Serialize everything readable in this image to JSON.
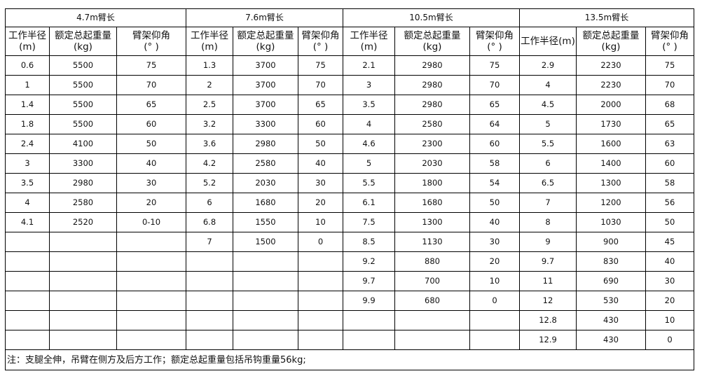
{
  "headers": {
    "radius": "工作半径",
    "radius_unit": "(m)",
    "radius_full": "工作半径(m)",
    "load": "额定总起重量",
    "load_unit": "(kg)",
    "angle": "臂架仰角",
    "angle_unit": "(° )"
  },
  "groups": [
    {
      "title": "4.7m臂长",
      "rows": [
        [
          "0.6",
          "5500",
          "75"
        ],
        [
          "1",
          "5500",
          "70"
        ],
        [
          "1.4",
          "5500",
          "65"
        ],
        [
          "1.8",
          "5500",
          "60"
        ],
        [
          "2.4",
          "4100",
          "50"
        ],
        [
          "3",
          "3300",
          "40"
        ],
        [
          "3.5",
          "2980",
          "30"
        ],
        [
          "4",
          "2580",
          "20"
        ],
        [
          "4.1",
          "2520",
          "0-10"
        ]
      ]
    },
    {
      "title": "7.6m臂长",
      "rows": [
        [
          "1.3",
          "3700",
          "75"
        ],
        [
          "2",
          "3700",
          "70"
        ],
        [
          "2.5",
          "3700",
          "65"
        ],
        [
          "3.2",
          "3300",
          "60"
        ],
        [
          "3.6",
          "2980",
          "50"
        ],
        [
          "4.2",
          "2580",
          "40"
        ],
        [
          "5.2",
          "2030",
          "30"
        ],
        [
          "6",
          "1680",
          "20"
        ],
        [
          "6.8",
          "1550",
          "10"
        ],
        [
          "7",
          "1500",
          "0"
        ]
      ]
    },
    {
      "title": "10.5m臂长",
      "rows": [
        [
          "2.1",
          "2980",
          "75"
        ],
        [
          "3",
          "2980",
          "70"
        ],
        [
          "3.5",
          "2980",
          "65"
        ],
        [
          "4",
          "2580",
          "64"
        ],
        [
          "4.6",
          "2300",
          "60"
        ],
        [
          "5",
          "2030",
          "58"
        ],
        [
          "5.5",
          "1800",
          "54"
        ],
        [
          "6.1",
          "1680",
          "50"
        ],
        [
          "7.5",
          "1300",
          "40"
        ],
        [
          "8.5",
          "1130",
          "30"
        ],
        [
          "9.2",
          "880",
          "20"
        ],
        [
          "9.7",
          "700",
          "10"
        ],
        [
          "9.9",
          "680",
          "0"
        ]
      ]
    },
    {
      "title": "13.5m臂长",
      "rows": [
        [
          "2.9",
          "2230",
          "75"
        ],
        [
          "4",
          "2230",
          "70"
        ],
        [
          "4.5",
          "2000",
          "68"
        ],
        [
          "5",
          "1730",
          "65"
        ],
        [
          "5.5",
          "1600",
          "63"
        ],
        [
          "6",
          "1400",
          "60"
        ],
        [
          "6.5",
          "1300",
          "58"
        ],
        [
          "7",
          "1200",
          "56"
        ],
        [
          "8",
          "1030",
          "50"
        ],
        [
          "9",
          "900",
          "45"
        ],
        [
          "9.7",
          "830",
          "40"
        ],
        [
          "11",
          "690",
          "30"
        ],
        [
          "12",
          "530",
          "20"
        ],
        [
          "12.8",
          "430",
          "10"
        ],
        [
          "12.9",
          "430",
          "0"
        ]
      ]
    }
  ],
  "note": "注：支腿全伸，吊臂在侧方及后方工作；额定总起重量包括吊钩重量56kg;"
}
